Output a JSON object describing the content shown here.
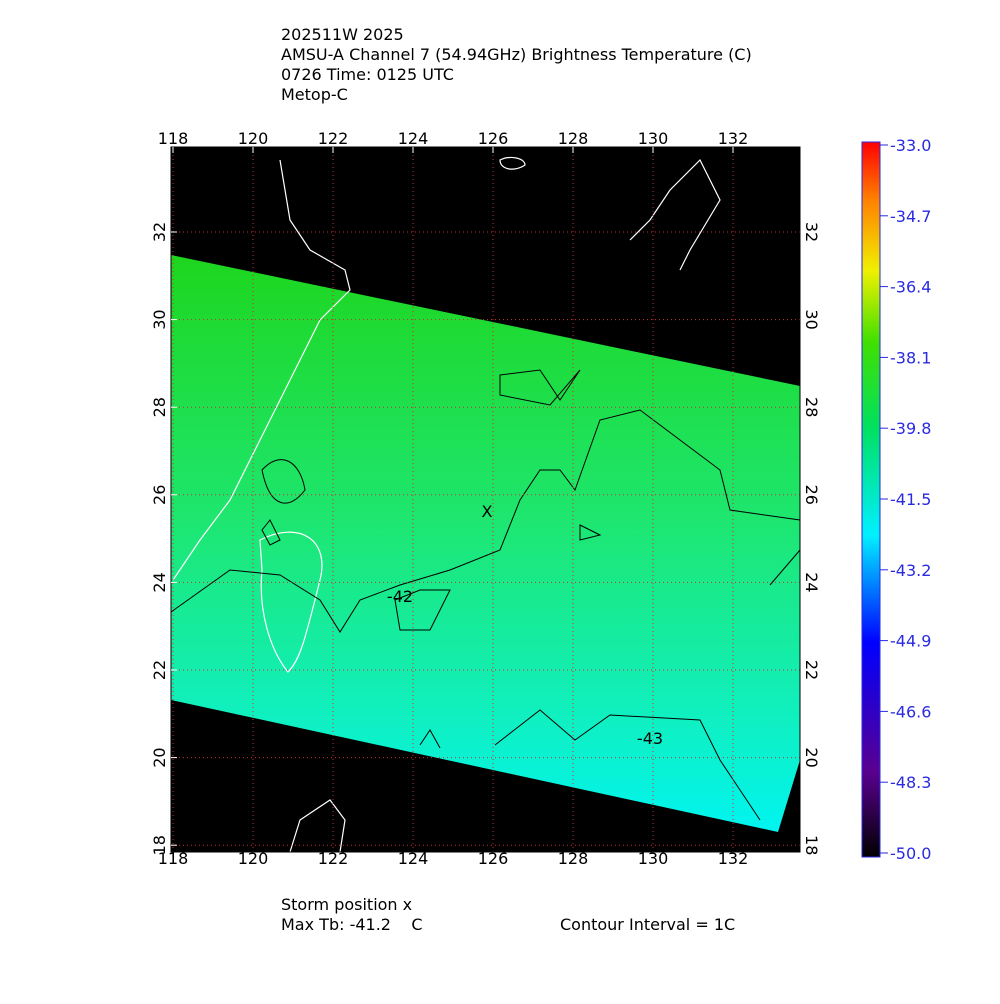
{
  "header": {
    "lines": [
      "202511W 2025",
      "AMSU-A Channel 7 (54.94GHz) Brightness Temperature (C)",
      "0726 Time: 0125 UTC",
      "Metop-C"
    ]
  },
  "map": {
    "lon_ticks": [
      118,
      120,
      122,
      124,
      126,
      128,
      130,
      132
    ],
    "lat_ticks": [
      18,
      20,
      22,
      24,
      26,
      28,
      30,
      32
    ],
    "contour_labels": [
      "-42",
      "-43"
    ],
    "storm_marker": "X"
  },
  "colorbar": {
    "ticks": [
      {
        "value": -33,
        "label": "-33.0"
      },
      {
        "value": -34.7,
        "label": "-34.7"
      },
      {
        "value": -36.4,
        "label": "-36.4"
      },
      {
        "value": -38.1,
        "label": "-38.1"
      },
      {
        "value": -39.8,
        "label": "-39.8"
      },
      {
        "value": -41.5,
        "label": "-41.5"
      },
      {
        "value": -43.2,
        "label": "-43.2"
      },
      {
        "value": -44.9,
        "label": "-44.9"
      },
      {
        "value": -46.6,
        "label": "-46.6"
      },
      {
        "value": -48.3,
        "label": "-48.3"
      },
      {
        "value": -50,
        "label": "-50.0"
      }
    ]
  },
  "footer": {
    "storm_position": "Storm position x",
    "max_tb": "Max Tb: -41.2    C",
    "contour_interval": "Contour Interval = 1C"
  }
}
